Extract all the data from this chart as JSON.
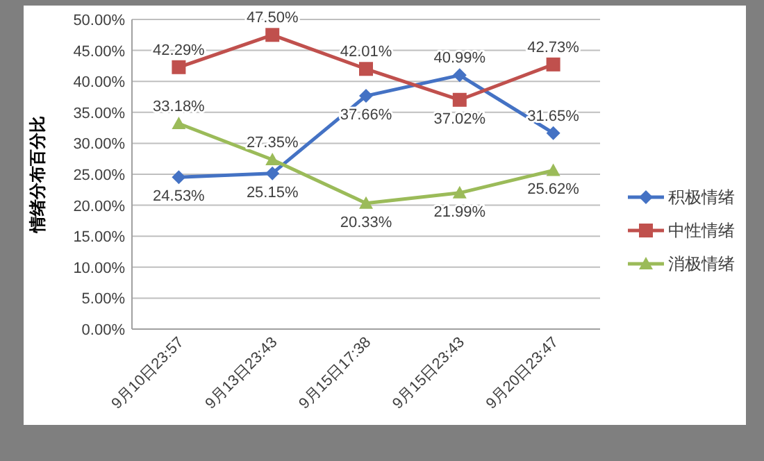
{
  "chart_data": {
    "type": "line",
    "ylabel": "情绪分布百分比",
    "categories": [
      "9月10日23:57",
      "9月13日23:43",
      "9月15日17:38",
      "9月15日23:43",
      "9月20日23:47"
    ],
    "series": [
      {
        "name": "积极情绪",
        "color": "#4472c4",
        "marker": "diamond",
        "values": [
          24.53,
          25.15,
          37.66,
          40.99,
          31.65
        ],
        "value_labels": [
          "24.53%",
          "25.15%",
          "37.66%",
          "40.99%",
          "31.65%"
        ]
      },
      {
        "name": "中性情绪",
        "color": "#c0504d",
        "marker": "square",
        "values": [
          42.29,
          47.5,
          42.01,
          37.02,
          42.73
        ],
        "value_labels": [
          "42.29%",
          "47.50%",
          "42.01%",
          "37.02%",
          "42.73%"
        ]
      },
      {
        "name": "消极情绪",
        "color": "#9bbb59",
        "marker": "triangle",
        "values": [
          33.18,
          27.35,
          20.33,
          21.99,
          25.62
        ],
        "value_labels": [
          "33.18%",
          "27.35%",
          "20.33%",
          "21.99%",
          "25.62%"
        ]
      }
    ],
    "ylim": [
      0,
      50
    ],
    "yticks": [
      {
        "value": 0,
        "label": "0.00%"
      },
      {
        "value": 5,
        "label": "5.00%"
      },
      {
        "value": 10,
        "label": "10.00%"
      },
      {
        "value": 15,
        "label": "15.00%"
      },
      {
        "value": 20,
        "label": "20.00%"
      },
      {
        "value": 25,
        "label": "25.00%"
      },
      {
        "value": 30,
        "label": "30.00%"
      },
      {
        "value": 35,
        "label": "35.00%"
      },
      {
        "value": 40,
        "label": "40.00%"
      },
      {
        "value": 45,
        "label": "45.00%"
      },
      {
        "value": 50,
        "label": "50.00%"
      }
    ],
    "grid": "y",
    "legend": "right",
    "line_style": "solid"
  }
}
